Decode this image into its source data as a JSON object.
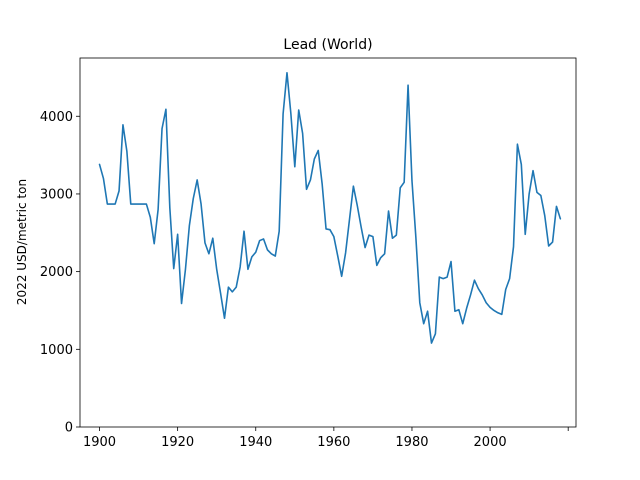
{
  "chart_data": {
    "type": "line",
    "title": "Lead (World)",
    "xlabel": "",
    "ylabel": "2022 USD/metric ton",
    "xlim": [
      1895,
      2022
    ],
    "ylim": [
      0,
      4750
    ],
    "xticks": [
      1900,
      1920,
      1940,
      1960,
      1980,
      2000,
      2020
    ],
    "xtick_labels": [
      "1900",
      "1920",
      "1940",
      "1960",
      "1980",
      "2000",
      ""
    ],
    "yticks": [
      0,
      1000,
      2000,
      3000,
      4000
    ],
    "ytick_labels": [
      "0",
      "1000",
      "2000",
      "3000",
      "4000"
    ],
    "grid": false,
    "legend": "none",
    "line_color": "#1f77b4",
    "series": [
      {
        "x": [
          1900,
          1901,
          1902,
          1903,
          1904,
          1905,
          1906,
          1907,
          1908,
          1909,
          1910,
          1911,
          1912,
          1913,
          1914,
          1915,
          1916,
          1917,
          1918,
          1919,
          1920,
          1921,
          1922,
          1923,
          1924,
          1925,
          1926,
          1927,
          1928,
          1929,
          1930,
          1931,
          1932,
          1933,
          1934,
          1935,
          1936,
          1937,
          1938,
          1939,
          1940,
          1941,
          1942,
          1943,
          1944,
          1945,
          1946,
          1947,
          1948,
          1949,
          1950,
          1951,
          1952,
          1953,
          1954,
          1955,
          1956,
          1957,
          1958,
          1959,
          1960,
          1961,
          1962,
          1963,
          1964,
          1965,
          1966,
          1967,
          1968,
          1969,
          1970,
          1971,
          1972,
          1973,
          1974,
          1975,
          1976,
          1977,
          1978,
          1979,
          1980,
          1981,
          1982,
          1983,
          1984,
          1985,
          1986,
          1987,
          1988,
          1989,
          1990,
          1991,
          1992,
          1993,
          1994,
          1995,
          1996,
          1997,
          1998,
          1999,
          2000,
          2001,
          2002,
          2003,
          2004,
          2005,
          2006,
          2007,
          2008,
          2009,
          2010,
          2011,
          2012,
          2013,
          2014,
          2015,
          2016,
          2017,
          2018
        ],
        "y": [
          3380,
          3200,
          2870,
          2870,
          2870,
          3040,
          3890,
          3550,
          2870,
          2870,
          2870,
          2870,
          2870,
          2700,
          2360,
          2800,
          3840,
          4090,
          2820,
          2040,
          2480,
          1590,
          2030,
          2590,
          2940,
          3180,
          2870,
          2370,
          2230,
          2430,
          2030,
          1720,
          1400,
          1800,
          1740,
          1800,
          2060,
          2520,
          2030,
          2190,
          2250,
          2400,
          2420,
          2280,
          2230,
          2200,
          2520,
          4030,
          4560,
          4030,
          3350,
          4080,
          3780,
          3060,
          3180,
          3450,
          3560,
          3130,
          2550,
          2540,
          2450,
          2200,
          1940,
          2240,
          2670,
          3100,
          2850,
          2570,
          2310,
          2470,
          2450,
          2080,
          2180,
          2230,
          2780,
          2430,
          2470,
          3080,
          3150,
          4400,
          3170,
          2440,
          1600,
          1330,
          1490,
          1080,
          1200,
          1930,
          1910,
          1930,
          2130,
          1490,
          1510,
          1330,
          1530,
          1700,
          1890,
          1780,
          1700,
          1600,
          1540,
          1500,
          1470,
          1450,
          1770,
          1910,
          2320,
          3640,
          3380,
          2480,
          3000,
          3300,
          3020,
          2980,
          2720,
          2330,
          2380,
          2840,
          2680
        ]
      }
    ]
  }
}
